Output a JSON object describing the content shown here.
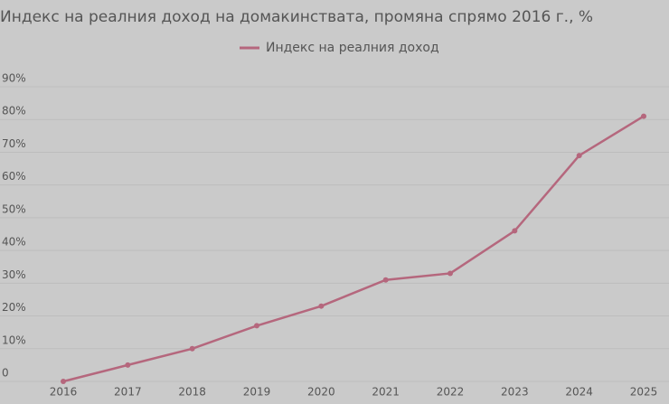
{
  "chart_data": {
    "type": "line",
    "title": "Индекс на реалния доход на домакинствата, промяна спрямо 2016 г., %",
    "categories": [
      "2016",
      "2017",
      "2018",
      "2019",
      "2020",
      "2021",
      "2022",
      "2023",
      "2024",
      "2025"
    ],
    "series": [
      {
        "name": "Индекс на реалния доход",
        "color": "#b5677d",
        "values": [
          0,
          5,
          10,
          17,
          23,
          31,
          33,
          46,
          69,
          81
        ]
      }
    ],
    "ylim": [
      0,
      90
    ],
    "yticks": [
      0,
      {
        "value": 10,
        "label": "10%"
      },
      {
        "value": 20,
        "label": "20%"
      },
      {
        "value": 30,
        "label": "30%"
      },
      {
        "value": 40,
        "label": "40%"
      },
      {
        "value": 50,
        "label": "50%"
      },
      {
        "value": 60,
        "label": "60%"
      },
      {
        "value": 70,
        "label": "70%"
      },
      {
        "value": 80,
        "label": "80%"
      },
      {
        "value": 90,
        "label": "90%"
      }
    ],
    "grid": true,
    "legend": "top"
  }
}
